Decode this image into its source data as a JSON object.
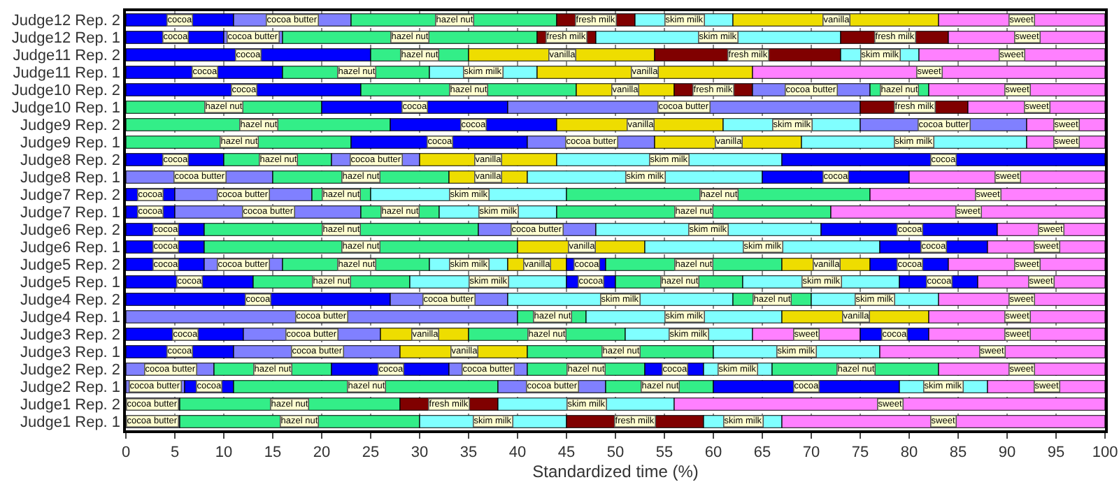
{
  "chart_data": {
    "type": "bar",
    "orientation": "horizontal",
    "stacked": true,
    "xlabel": "Standardized time (%)",
    "categories": [
      "Judge12 Rep. 2",
      "Judge12 Rep. 1",
      "Judge11 Rep. 2",
      "Judge11 Rep. 1",
      "Judge10 Rep. 2",
      "Judge10 Rep. 1",
      "Judge9 Rep. 2",
      "Judge9 Rep. 1",
      "Judge8 Rep. 2",
      "Judge8 Rep. 1",
      "Judge7 Rep. 2",
      "Judge7 Rep. 1",
      "Judge6 Rep. 2",
      "Judge6 Rep. 1",
      "Judge5 Rep. 2",
      "Judge5 Rep. 1",
      "Judge4 Rep. 2",
      "Judge4 Rep. 1",
      "Judge3 Rep. 2",
      "Judge3 Rep. 1",
      "Judge2 Rep. 2",
      "Judge2 Rep. 1",
      "Judge1 Rep. 2",
      "Judge1 Rep. 1"
    ],
    "xlim": [
      0,
      100
    ],
    "xticks": [
      0,
      5,
      10,
      15,
      20,
      25,
      30,
      35,
      40,
      45,
      50,
      55,
      60,
      65,
      70,
      75,
      80,
      85,
      90,
      95,
      100
    ],
    "grid": "x",
    "series": [
      {
        "values": [
          11,
          10,
          25,
          16,
          24,
          20,
          27,
          23,
          10,
          15,
          5,
          5,
          8,
          8,
          8,
          13,
          27,
          40,
          12,
          11,
          9,
          6,
          5.5,
          5.5
        ],
        "colors": [
          "#0000ff",
          "#0000ff",
          "#0000ff",
          "#0000ff",
          "#0000ff",
          "#33ee88",
          "#33ee88",
          "#33ee88",
          "#0000ff",
          "#8080ff",
          "#0000ff",
          "#0000ff",
          "#0000ff",
          "#0000ff",
          "#0000ff",
          "#0000ff",
          "#0000ff",
          "#8080ff",
          "#0000ff",
          "#0000ff",
          "#8080ff",
          "#8080ff",
          "#8080ff",
          "#8080ff"
        ],
        "value_labels": [
          "cocoa",
          "cocoa",
          "cocoa",
          "cocoa",
          "cocoa",
          "hazel nut",
          "hazel nut",
          "hazel nut",
          "cocoa",
          "cocoa butter",
          "cocoa",
          "cocoa",
          "cocoa",
          "cocoa",
          "cocoa",
          "cocoa",
          "cocoa",
          "cocoa butter",
          "cocoa",
          "cocoa",
          "cocoa butter",
          "cocoa butter",
          "cocoa butter",
          "cocoa butter"
        ]
      },
      {
        "values": [
          12,
          6,
          10,
          15,
          22,
          19,
          17,
          18,
          11,
          18,
          14,
          19,
          28,
          32,
          8,
          16,
          12,
          7,
          14,
          17,
          12,
          5,
          22.5,
          24.5
        ],
        "colors": [
          "#8080ff",
          "#8080ff",
          "#33ee88",
          "#33ee88",
          "#33ee88",
          "#0000ff",
          "#0000ff",
          "#0000ff",
          "#33ee88",
          "#33ee88",
          "#8080ff",
          "#8080ff",
          "#33ee88",
          "#33ee88",
          "#8080ff",
          "#33ee88",
          "#8080ff",
          "#33ee88",
          "#8080ff",
          "#8080ff",
          "#33ee88",
          "#0000ff",
          "#33ee88",
          "#33ee88"
        ],
        "value_labels": [
          "cocoa butter",
          "cocoa butter",
          "hazel nut",
          "hazel nut",
          "hazel nut",
          "cocoa",
          "cocoa",
          "cocoa",
          "hazel nut",
          "hazel nut",
          "cocoa butter",
          "cocoa butter",
          "hazel nut",
          "hazel nut",
          "cocoa butter",
          "hazel nut",
          "cocoa butter",
          "hazel nut",
          "cocoa butter",
          "cocoa butter",
          "hazel nut",
          "cocoa",
          "hazel nut",
          "hazel nut"
        ]
      },
      {
        "values": [
          21,
          26,
          19,
          11,
          10,
          36,
          17,
          13,
          9,
          8,
          6,
          8,
          12,
          13,
          15,
          16,
          23,
          20,
          9,
          13,
          12,
          27,
          10,
          15
        ],
        "colors": [
          "#33ee88",
          "#33ee88",
          "#eedd00",
          "#80ffff",
          "#eedd00",
          "#8080ff",
          "#eedd00",
          "#8080ff",
          "#8080ff",
          "#eedd00",
          "#33ee88",
          "#33ee88",
          "#8080ff",
          "#eedd00",
          "#33ee88",
          "#80ffff",
          "#80ffff",
          "#80ffff",
          "#eedd00",
          "#eedd00",
          "#0000ff",
          "#33ee88",
          "#800000",
          "#80ffff"
        ],
        "value_labels": [
          "hazel nut",
          "hazel nut",
          "vanilla",
          "skim milk",
          "vanilla",
          "cocoa butter",
          "vanilla",
          "cocoa butter",
          "cocoa butter",
          "vanilla",
          "hazel nut",
          "hazel nut",
          "cocoa butter",
          "vanilla",
          "hazel nut",
          "skim milk",
          "skim milk",
          "skim milk",
          "vanilla",
          "vanilla",
          "cocoa",
          "hazel nut",
          "fresh milk",
          "skim milk"
        ]
      },
      {
        "values": [
          8,
          6,
          19,
          22,
          8,
          11,
          14,
          15,
          14,
          24,
          20,
          12,
          23,
          24,
          8,
          5,
          8,
          15,
          16,
          19,
          8,
          11,
          18,
          14
        ],
        "colors": [
          "#800000",
          "#800000",
          "#800000",
          "#eedd00",
          "#800000",
          "#800000",
          "#80ffff",
          "#eedd00",
          "#eedd00",
          "#80ffff",
          "#80ffff",
          "#80ffff",
          "#80ffff",
          "#80ffff",
          "#80ffff",
          "#0000ff",
          "#33ee88",
          "#eedd00",
          "#33ee88",
          "#33ee88",
          "#8080ff",
          "#8080ff",
          "#80ffff",
          "#800000"
        ],
        "value_labels": [
          "fresh milk",
          "fresh milk",
          "fresh milk",
          "vanilla",
          "fresh milk",
          "fresh milk",
          "skim milk",
          "vanilla",
          "vanilla",
          "skim milk",
          "skim milk",
          "skim milk",
          "skim milk",
          "skim milk",
          "skim milk",
          "cocoa",
          "hazel nut",
          "vanilla",
          "hazel nut",
          "hazel nut",
          "cocoa butter",
          "cocoa butter",
          "skim milk",
          "fresh milk"
        ]
      },
      {
        "values": [
          10,
          25,
          8,
          36,
          12,
          14,
          17,
          23,
          23,
          15,
          31,
          28,
          18,
          11,
          6,
          13,
          13,
          18,
          13,
          17,
          12,
          11,
          44,
          8
        ],
        "colors": [
          "#80ffff",
          "#80ffff",
          "#80ffff",
          "#ff80ff",
          "#8080ff",
          "#ff80ff",
          "#8080ff",
          "#80ffff",
          "#80ffff",
          "#0000ff",
          "#33ee88",
          "#33ee88",
          "#0000ff",
          "#0000ff",
          "#eedd00",
          "#33ee88",
          "#80ffff",
          "#ff80ff",
          "#80ffff",
          "#80ffff",
          "#33ee88",
          "#33ee88",
          "#ff80ff",
          "#80ffff"
        ],
        "value_labels": [
          "skim milk",
          "skim milk",
          "skim milk",
          "sweet",
          "cocoa butter",
          "sweet",
          "cocoa butter",
          "skim milk",
          "skim milk",
          "cocoa",
          "hazel nut",
          "hazel nut",
          "cocoa",
          "cocoa",
          "vanilla",
          "hazel nut",
          "skim milk",
          "sweet",
          "skim milk",
          "skim milk",
          "hazel nut",
          "hazel nut",
          "sweet",
          "skim milk"
        ]
      },
      {
        "values": [
          21,
          11,
          19,
          null,
          6,
          null,
          8,
          8,
          33,
          20,
          24,
          28,
          11,
          12,
          4,
          16,
          17,
          null,
          11,
          23,
          6,
          19,
          null,
          33
        ],
        "colors": [
          "#eedd00",
          "#800000",
          "#ff80ff",
          null,
          "#33ee88",
          null,
          "#ff80ff",
          "#ff80ff",
          "#0000ff",
          "#ff80ff",
          "#ff80ff",
          "#ff80ff",
          "#ff80ff",
          "#ff80ff",
          "#0000ff",
          "#80ffff",
          "#ff80ff",
          null,
          "#ff80ff",
          "#ff80ff",
          "#0000ff",
          "#0000ff",
          null,
          "#ff80ff"
        ],
        "value_labels": [
          "vanilla",
          "fresh milk",
          "sweet",
          null,
          "hazel nut",
          null,
          "sweet",
          "sweet",
          "cocoa",
          "sweet",
          "sweet",
          "sweet",
          "sweet",
          "sweet",
          "cocoa",
          "skim milk",
          "sweet",
          null,
          "sweet",
          "sweet",
          "cocoa",
          "cocoa",
          null,
          "sweet"
        ]
      },
      {
        "values": [
          17,
          16,
          null,
          null,
          18,
          null,
          null,
          null,
          null,
          null,
          null,
          null,
          null,
          null,
          18,
          8,
          null,
          null,
          7,
          null,
          7,
          9,
          null,
          null
        ],
        "colors": [
          "#ff80ff",
          "#ff80ff",
          null,
          null,
          "#ff80ff",
          null,
          null,
          null,
          null,
          null,
          null,
          null,
          null,
          null,
          "#33ee88",
          "#0000ff",
          null,
          null,
          "#0000ff",
          null,
          "#80ffff",
          "#80ffff",
          null,
          null
        ],
        "value_labels": [
          "sweet",
          "sweet",
          null,
          null,
          "sweet",
          null,
          null,
          null,
          null,
          null,
          null,
          null,
          null,
          null,
          "hazel nut",
          "cocoa",
          null,
          null,
          "cocoa",
          null,
          "skim milk",
          "skim milk",
          null,
          null
        ]
      },
      {
        "values": [
          null,
          null,
          null,
          null,
          null,
          null,
          null,
          null,
          null,
          null,
          null,
          null,
          null,
          null,
          9,
          13,
          null,
          null,
          18,
          null,
          17,
          12,
          null,
          null
        ],
        "colors": [
          null,
          null,
          null,
          null,
          null,
          null,
          null,
          null,
          null,
          null,
          null,
          null,
          null,
          null,
          "#eedd00",
          "#ff80ff",
          null,
          null,
          "#ff80ff",
          null,
          "#33ee88",
          "#ff80ff",
          null,
          null
        ],
        "value_labels": [
          null,
          null,
          null,
          null,
          null,
          null,
          null,
          null,
          null,
          null,
          null,
          null,
          null,
          null,
          "vanilla",
          "sweet",
          null,
          null,
          "sweet",
          null,
          "hazel nut",
          "sweet",
          null,
          null
        ]
      },
      {
        "values": [
          null,
          null,
          null,
          null,
          null,
          null,
          null,
          null,
          null,
          null,
          null,
          null,
          null,
          null,
          8,
          null,
          null,
          null,
          null,
          null,
          17,
          null,
          null,
          null
        ],
        "colors": [
          null,
          null,
          null,
          null,
          null,
          null,
          null,
          null,
          null,
          null,
          null,
          null,
          null,
          null,
          "#0000ff",
          null,
          null,
          null,
          null,
          null,
          "#ff80ff",
          null,
          null,
          null
        ],
        "value_labels": [
          null,
          null,
          null,
          null,
          null,
          null,
          null,
          null,
          null,
          null,
          null,
          null,
          null,
          null,
          "cocoa",
          null,
          null,
          null,
          null,
          null,
          "sweet",
          null,
          null,
          null
        ]
      },
      {
        "values": [
          null,
          null,
          null,
          null,
          null,
          null,
          null,
          null,
          null,
          null,
          null,
          null,
          null,
          null,
          16,
          null,
          null,
          null,
          null,
          null,
          null,
          null,
          null,
          null
        ],
        "colors": [
          null,
          null,
          null,
          null,
          null,
          null,
          null,
          null,
          null,
          null,
          null,
          null,
          null,
          null,
          "#ff80ff",
          null,
          null,
          null,
          null,
          null,
          null,
          null,
          null,
          null
        ],
        "value_labels": [
          null,
          null,
          null,
          null,
          null,
          null,
          null,
          null,
          null,
          null,
          null,
          null,
          null,
          null,
          "sweet",
          null,
          null,
          null,
          null,
          null,
          null,
          null,
          null,
          null
        ]
      }
    ]
  }
}
